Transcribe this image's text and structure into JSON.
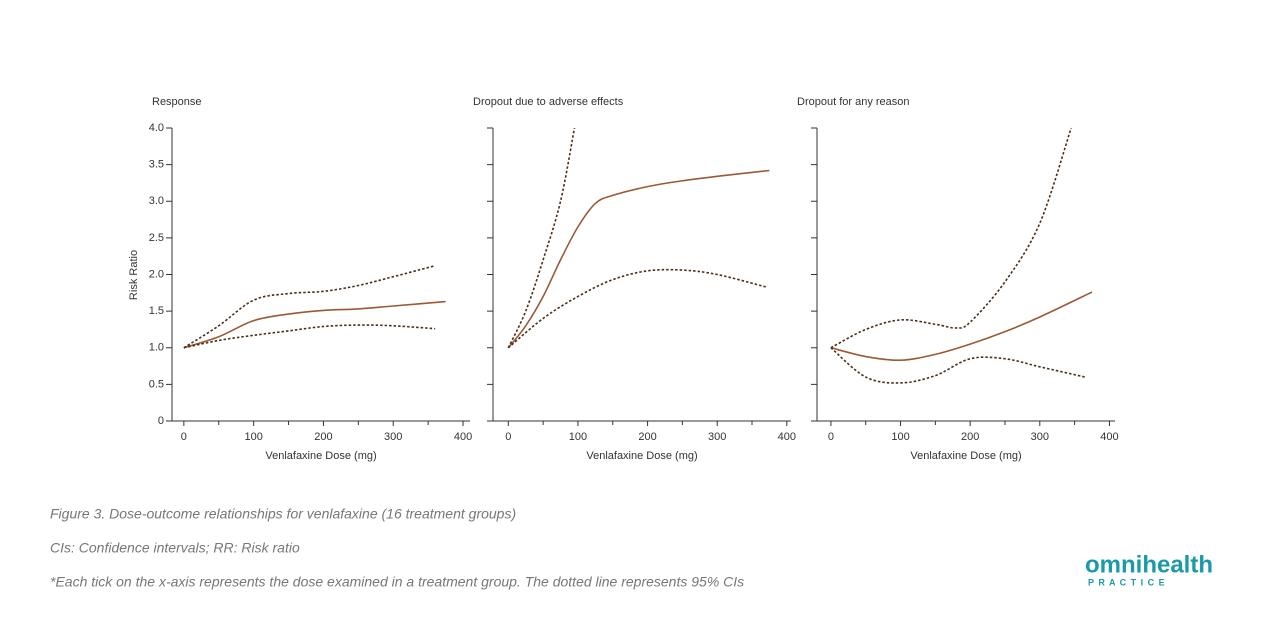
{
  "chart_data": [
    {
      "type": "line",
      "title": "Response",
      "xlabel": "Venlafaxine Dose (mg)",
      "ylabel": "Risk Ratio",
      "xlim": [
        -17,
        410
      ],
      "ylim": [
        0,
        4
      ],
      "xticks": [
        0,
        100,
        200,
        300,
        400
      ],
      "minor_xticks": [
        50,
        150,
        250,
        350
      ],
      "yticks": [
        0,
        0.5,
        {
          "value": 1,
          "label": "1.0"
        },
        1.5,
        {
          "value": 2,
          "label": "2.0"
        },
        2.5,
        {
          "value": 3,
          "label": "3.0"
        },
        3.5,
        {
          "value": 4,
          "label": "4.0"
        }
      ],
      "series": [
        {
          "color": "#9b5a34",
          "dash": false,
          "x": [
            0,
            50,
            100,
            150,
            200,
            250,
            300,
            375
          ],
          "values": [
            1.0,
            1.15,
            1.37,
            1.46,
            1.51,
            1.53,
            1.57,
            1.63
          ]
        },
        {
          "color": "#4a2e1a",
          "dash": true,
          "x": [
            0,
            50,
            100,
            150,
            200,
            250,
            300,
            360
          ],
          "values": [
            1.0,
            1.3,
            1.65,
            1.74,
            1.77,
            1.85,
            1.97,
            2.12
          ]
        },
        {
          "color": "#4a2e1a",
          "dash": true,
          "x": [
            0,
            50,
            100,
            150,
            200,
            250,
            300,
            360
          ],
          "values": [
            1.0,
            1.1,
            1.17,
            1.23,
            1.29,
            1.31,
            1.3,
            1.26
          ]
        }
      ]
    },
    {
      "type": "line",
      "title": "Dropout due to adverse effects",
      "xlabel": "Venlafaxine Dose (mg)",
      "xlim": [
        -22,
        406
      ],
      "ylim": [
        0,
        4
      ],
      "xticks": [
        0,
        100,
        200,
        300,
        400
      ],
      "minor_xticks": [
        50,
        150,
        250,
        350
      ],
      "yticks": [
        0,
        0.5,
        1,
        1.5,
        2,
        2.5,
        3,
        3.5,
        4
      ],
      "series": [
        {
          "color": "#9b5a34",
          "dash": false,
          "x": [
            0,
            25,
            50,
            75,
            100,
            125,
            150,
            200,
            250,
            300,
            375
          ],
          "values": [
            1.0,
            1.3,
            1.7,
            2.2,
            2.65,
            2.97,
            3.08,
            3.2,
            3.28,
            3.34,
            3.42
          ]
        },
        {
          "color": "#4a2e1a",
          "dash": true,
          "x": [
            0,
            25,
            50,
            75,
            95
          ],
          "values": [
            1.0,
            1.5,
            2.2,
            3.0,
            4.0
          ]
        },
        {
          "color": "#4a2e1a",
          "dash": true,
          "x": [
            0,
            50,
            100,
            150,
            200,
            250,
            300,
            370
          ],
          "values": [
            1.0,
            1.4,
            1.7,
            1.93,
            2.05,
            2.06,
            2.0,
            1.83
          ]
        }
      ]
    },
    {
      "type": "line",
      "title": "Dropout for any reason",
      "xlabel": "Venlafaxine Dose (mg)",
      "xlim": [
        -20,
        408
      ],
      "ylim": [
        0,
        4
      ],
      "xticks": [
        0,
        100,
        200,
        300,
        400
      ],
      "minor_xticks": [
        50,
        150,
        250,
        350
      ],
      "yticks": [
        0,
        0.5,
        1,
        1.5,
        2,
        2.5,
        3,
        3.5,
        4
      ],
      "series": [
        {
          "color": "#9b5a34",
          "dash": false,
          "x": [
            0,
            50,
            100,
            150,
            200,
            250,
            300,
            375
          ],
          "values": [
            1.0,
            0.88,
            0.83,
            0.91,
            1.05,
            1.22,
            1.42,
            1.76
          ]
        },
        {
          "color": "#4a2e1a",
          "dash": true,
          "x": [
            0,
            50,
            100,
            150,
            180,
            200,
            250,
            300,
            345
          ],
          "values": [
            1.0,
            1.25,
            1.38,
            1.32,
            1.27,
            1.35,
            1.9,
            2.7,
            4.0
          ]
        },
        {
          "color": "#4a2e1a",
          "dash": true,
          "x": [
            0,
            50,
            100,
            150,
            200,
            250,
            300,
            365
          ],
          "values": [
            1.0,
            0.6,
            0.52,
            0.62,
            0.85,
            0.85,
            0.74,
            0.6
          ]
        }
      ]
    }
  ],
  "figure_caption": "Figure 3. Dose-outcome relationships for venlafaxine (16 treatment groups)",
  "notes": [
    "CIs: Confidence intervals; RR: Risk ratio",
    "*Each tick on the x-axis represents the dose examined in a treatment group. The dotted line represents 95% CIs"
  ],
  "logo": {
    "name": "omnihealth",
    "tagline": "P R A C T I C E"
  }
}
